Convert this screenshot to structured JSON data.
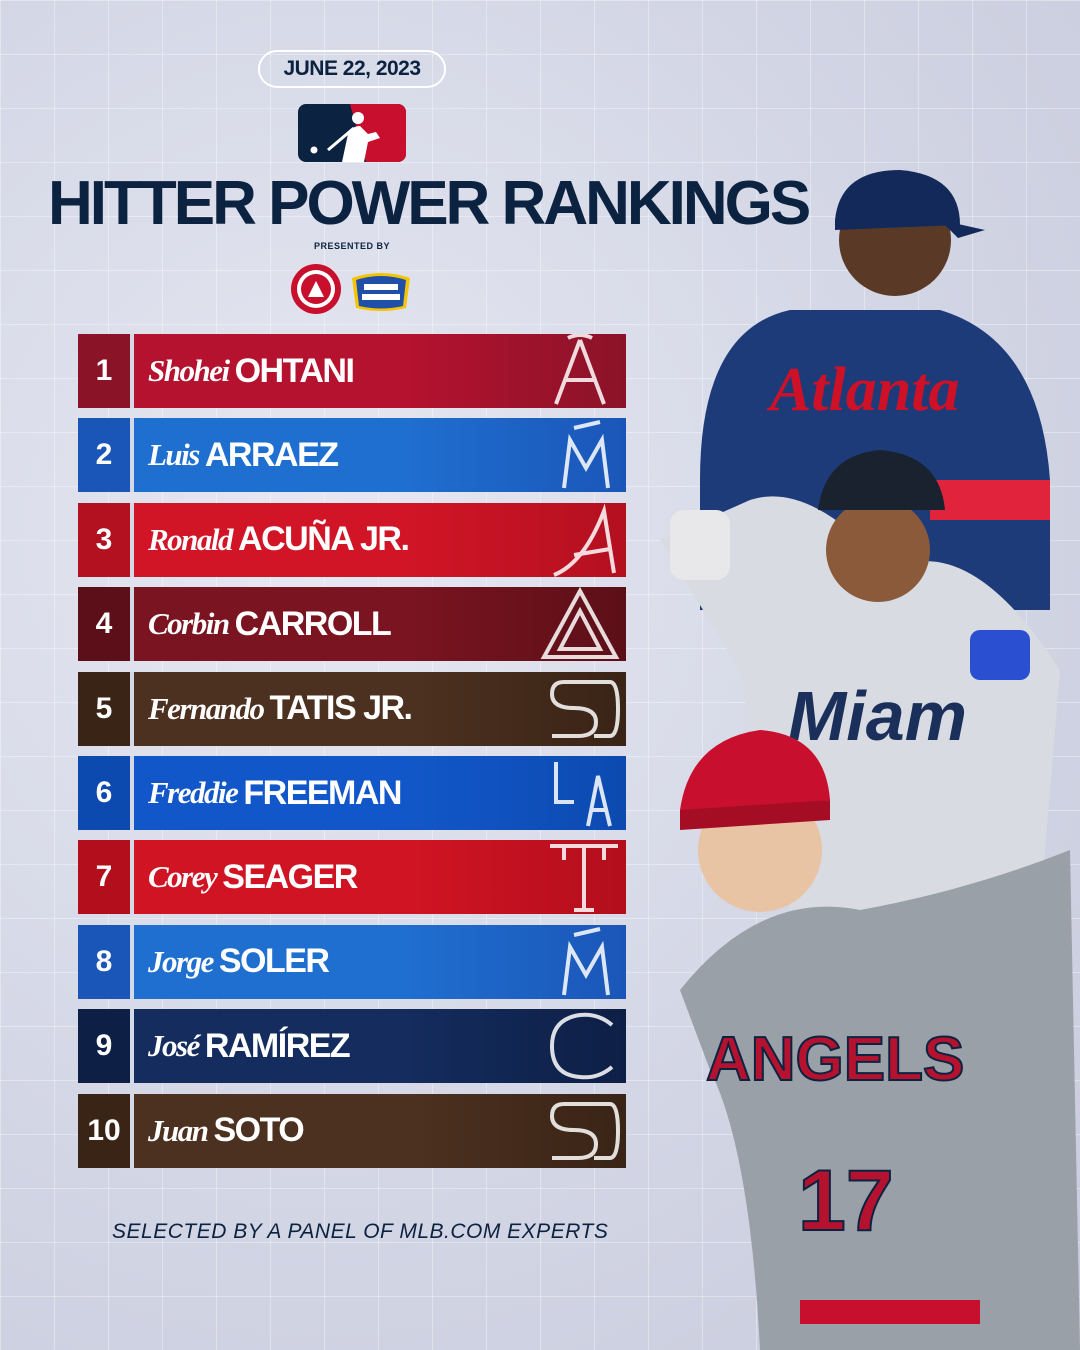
{
  "date": "JUNE 22, 2023",
  "title": "HITTER POWER RANKINGS",
  "presented_by": "PRESENTED BY",
  "sponsors": [
    "ARM & HAMMER",
    "OXI CLEAN"
  ],
  "footer": "SELECTED BY A PANEL OF MLB.COM EXPERTS",
  "rankings": [
    {
      "rank": "1",
      "first": "Shohei",
      "last": "OHTANI",
      "team": "Angels",
      "icon": "angels-logo-icon",
      "color_rank": "#8a1328",
      "color_bar": "#b5122f"
    },
    {
      "rank": "2",
      "first": "Luis",
      "last": "ARRAEZ",
      "team": "Marlins",
      "icon": "marlins-logo-icon",
      "color_rank": "#1a56b8",
      "color_bar": "#1f6fd0"
    },
    {
      "rank": "3",
      "first": "Ronald",
      "last": "ACUÑA JR.",
      "team": "Braves",
      "icon": "braves-logo-icon",
      "color_rank": "#b31020",
      "color_bar": "#d11526"
    },
    {
      "rank": "4",
      "first": "Corbin",
      "last": "CARROLL",
      "team": "Diamondbacks",
      "icon": "diamondbacks-logo-icon",
      "color_rank": "#5c0f18",
      "color_bar": "#7a1420"
    },
    {
      "rank": "5",
      "first": "Fernando",
      "last": "TATIS JR.",
      "team": "Padres",
      "icon": "padres-logo-icon",
      "color_rank": "#3a2416",
      "color_bar": "#4d3120"
    },
    {
      "rank": "6",
      "first": "Freddie",
      "last": "FREEMAN",
      "team": "Dodgers",
      "icon": "dodgers-logo-icon",
      "color_rank": "#0c4ab0",
      "color_bar": "#1257c9"
    },
    {
      "rank": "7",
      "first": "Corey",
      "last": "SEAGER",
      "team": "Rangers",
      "icon": "rangers-logo-icon",
      "color_rank": "#b30e1c",
      "color_bar": "#d11424"
    },
    {
      "rank": "8",
      "first": "Jorge",
      "last": "SOLER",
      "team": "Marlins",
      "icon": "marlins-logo-icon",
      "color_rank": "#1a56b8",
      "color_bar": "#1f6fd0"
    },
    {
      "rank": "9",
      "first": "José",
      "last": "RAMÍREZ",
      "team": "Guardians",
      "icon": "guardians-logo-icon",
      "color_rank": "#0d1f45",
      "color_bar": "#142c5e"
    },
    {
      "rank": "10",
      "first": "Juan",
      "last": "SOTO",
      "team": "Padres",
      "icon": "padres-logo-icon",
      "color_rank": "#3a2416",
      "color_bar": "#4d3120"
    }
  ],
  "players_image": "baseball-players-photo"
}
